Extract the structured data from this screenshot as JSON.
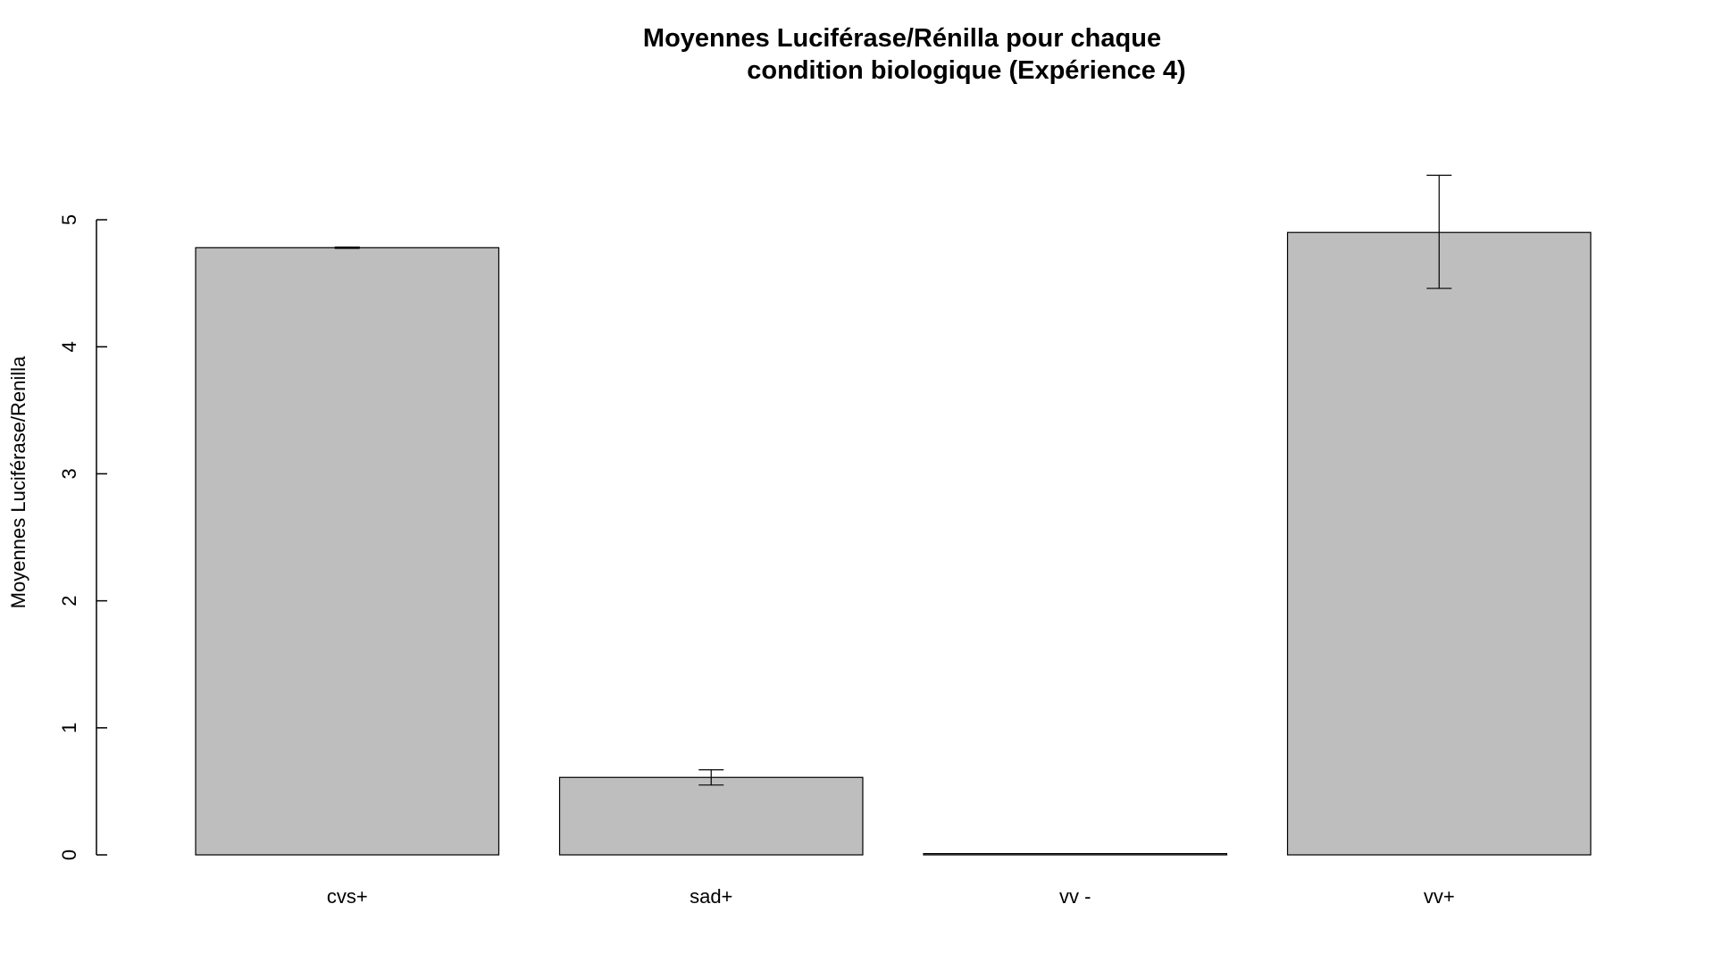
{
  "chart_data": {
    "type": "bar",
    "title_lines": [
      "Moyennes Luciférase/Rénilla pour chaque",
      "condition biologique (Expérience 4)"
    ],
    "xlabel": "",
    "ylabel": "Moyennes Luciférase/Renilla",
    "categories": [
      "cvs+",
      "sad+",
      "vv -",
      "vv+"
    ],
    "values": [
      4.78,
      0.61,
      0.01,
      4.9
    ],
    "error_low": [
      4.775,
      0.55,
      0.01,
      4.46
    ],
    "error_high": [
      4.785,
      0.67,
      0.01,
      5.35
    ],
    "ylim": [
      0,
      5
    ],
    "yticks": [
      0,
      1,
      2,
      3,
      4,
      5
    ],
    "grid": false,
    "legend": "none",
    "colors": {
      "bar_fill": "#bebebe",
      "bar_stroke": "#000000",
      "text": "#000000"
    }
  }
}
